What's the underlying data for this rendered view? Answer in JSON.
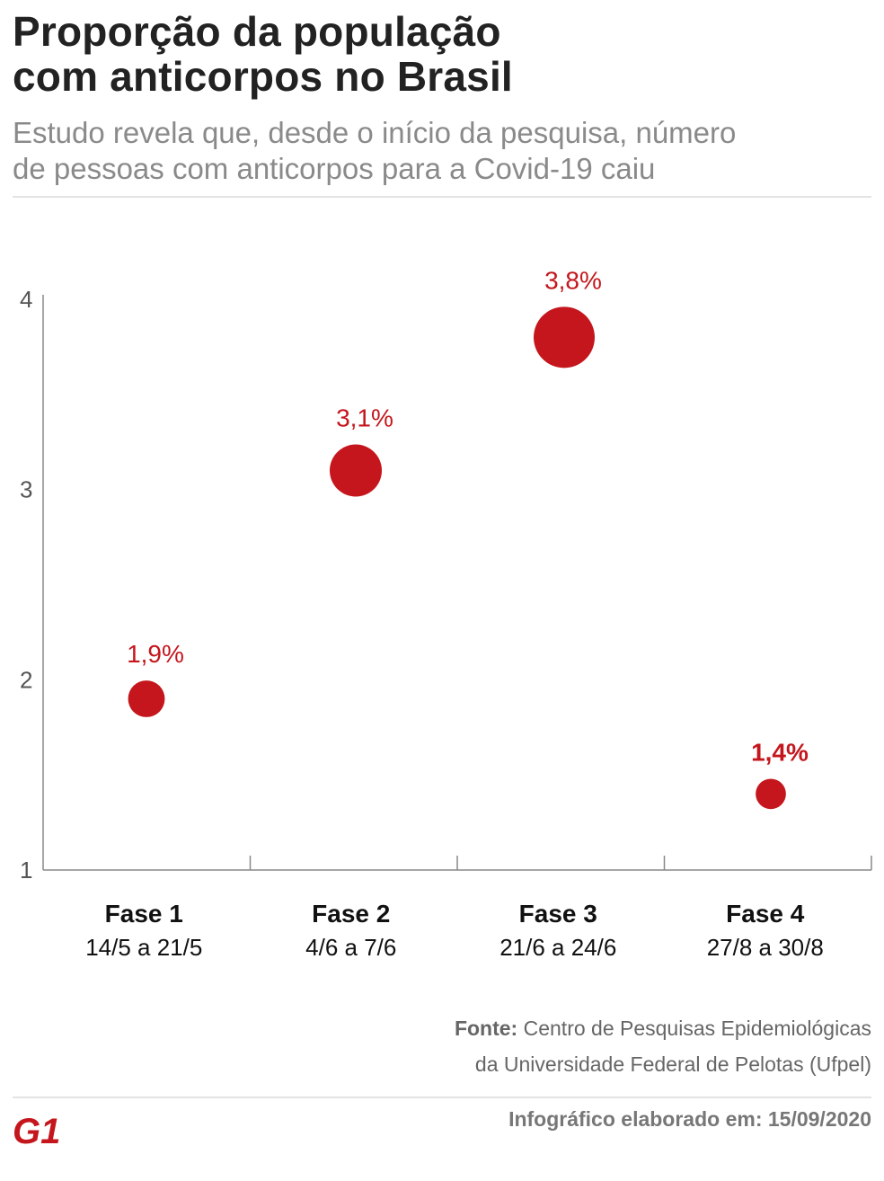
{
  "header": {
    "title_line1": "Proporção da população",
    "title_line2": "com anticorpos no Brasil",
    "subtitle_line1": "Estudo revela que, desde o início da pesquisa, número",
    "subtitle_line2": "de pessoas com anticorpos para a Covid-19 caiu"
  },
  "chart_data": {
    "type": "scatter",
    "categories": [
      "Fase 1",
      "Fase 2",
      "Fase 3",
      "Fase 4"
    ],
    "category_dates": [
      "14/5 a 21/5",
      "4/6 a 7/6",
      "21/6 a 24/6",
      "27/8 a 30/8"
    ],
    "values": [
      1.9,
      3.1,
      3.8,
      1.4
    ],
    "value_labels": [
      "1,9%",
      "3,1%",
      "3,8%",
      "1,4%"
    ],
    "yticks": [
      "1",
      "2",
      "3",
      "4"
    ],
    "ylim": [
      1,
      4
    ],
    "title": "",
    "xlabel": "",
    "ylabel": "",
    "grid": false,
    "dot_color": "#c4161c"
  },
  "source": {
    "label": "Fonte:",
    "line1": "Centro de Pesquisas Epidemiológicas",
    "line2": "da Universidade Federal de Pelotas (Ufpel)"
  },
  "footer": {
    "note": "Infográfico elaborado em: 15/09/2020",
    "logo_text": "G1"
  },
  "colors": {
    "accent": "#c4161c",
    "subtitle": "#8a8a8a"
  }
}
